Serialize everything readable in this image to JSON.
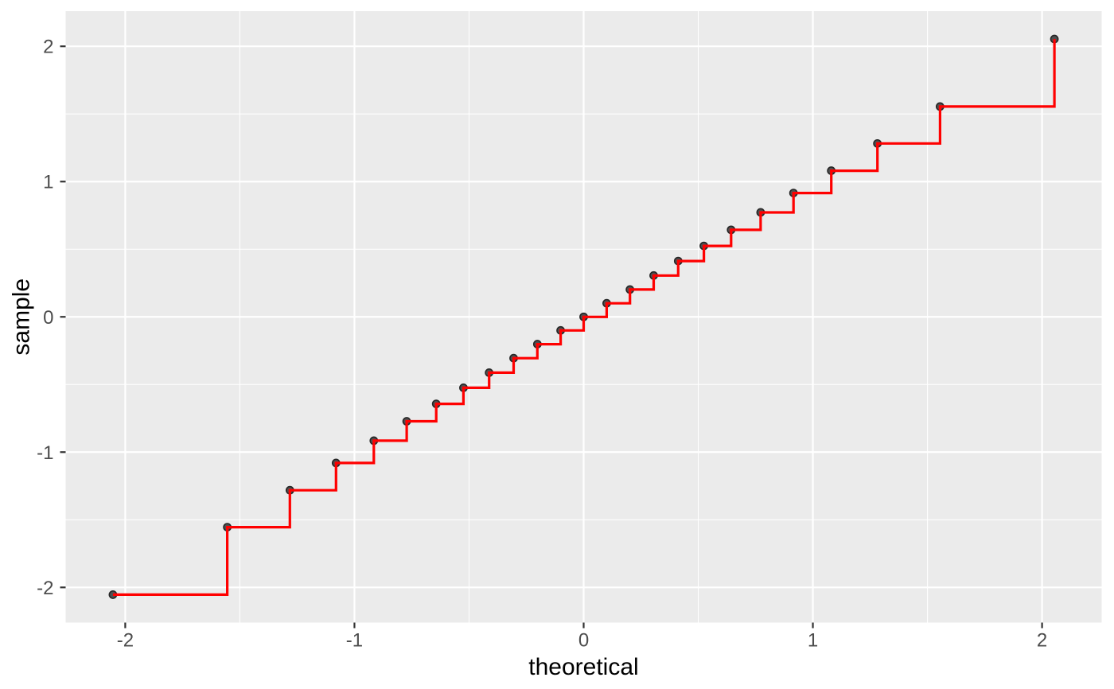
{
  "figure": {
    "background_color": "#FFFFFF"
  },
  "chart_data": {
    "type": "scatter",
    "subtype": "qq-plot",
    "layers": [
      "point",
      "step"
    ],
    "step_direction": "hv",
    "title": "",
    "xlabel": "theoretical",
    "ylabel": "sample",
    "legend": "none",
    "grid": "on",
    "xlim": [
      -2.26,
      2.26
    ],
    "ylim": [
      -2.26,
      2.26
    ],
    "x_tick_values": [
      -2,
      -1,
      0,
      1,
      2
    ],
    "x_tick_labels": [
      "-2",
      "-1",
      "0",
      "1",
      "2"
    ],
    "y_tick_values": [
      -2,
      -1,
      0,
      1,
      2
    ],
    "y_tick_labels": [
      "-2",
      "-1",
      "0",
      "1",
      "2"
    ],
    "x_minor_gridlines": [
      -1.5,
      -0.5,
      0.5,
      1.5
    ],
    "y_minor_gridlines": [
      -1.5,
      -0.5,
      0.5,
      1.5
    ],
    "columns": [
      "theoretical",
      "sample"
    ],
    "points": [
      [
        -2.0537,
        -2.0537
      ],
      [
        -1.5548,
        -1.5548
      ],
      [
        -1.2816,
        -1.2816
      ],
      [
        -1.0803,
        -1.0803
      ],
      [
        -0.9154,
        -0.9154
      ],
      [
        -0.7722,
        -0.7722
      ],
      [
        -0.6433,
        -0.6433
      ],
      [
        -0.5244,
        -0.5244
      ],
      [
        -0.4125,
        -0.4125
      ],
      [
        -0.3055,
        -0.3055
      ],
      [
        -0.2019,
        -0.2019
      ],
      [
        -0.1004,
        -0.1004
      ],
      [
        0.0,
        0.0
      ],
      [
        0.1004,
        0.1004
      ],
      [
        0.2019,
        0.2019
      ],
      [
        0.3055,
        0.3055
      ],
      [
        0.4125,
        0.4125
      ],
      [
        0.5244,
        0.5244
      ],
      [
        0.6433,
        0.6433
      ],
      [
        0.7722,
        0.7722
      ],
      [
        0.9154,
        0.9154
      ],
      [
        1.0803,
        1.0803
      ],
      [
        1.2816,
        1.2816
      ],
      [
        1.5548,
        1.5548
      ],
      [
        2.0537,
        2.0537
      ]
    ],
    "colors": {
      "panel_background": "#EBEBEB",
      "grid_major": "#FFFFFF",
      "grid_minor": "#FFFFFF",
      "step_line": "#FF0000",
      "point_fill": "#4F4F4F",
      "point_stroke": "#262626",
      "tick_mark": "#333333",
      "tick_text": "#4D4D4D",
      "axis_title_text": "#000000"
    }
  }
}
